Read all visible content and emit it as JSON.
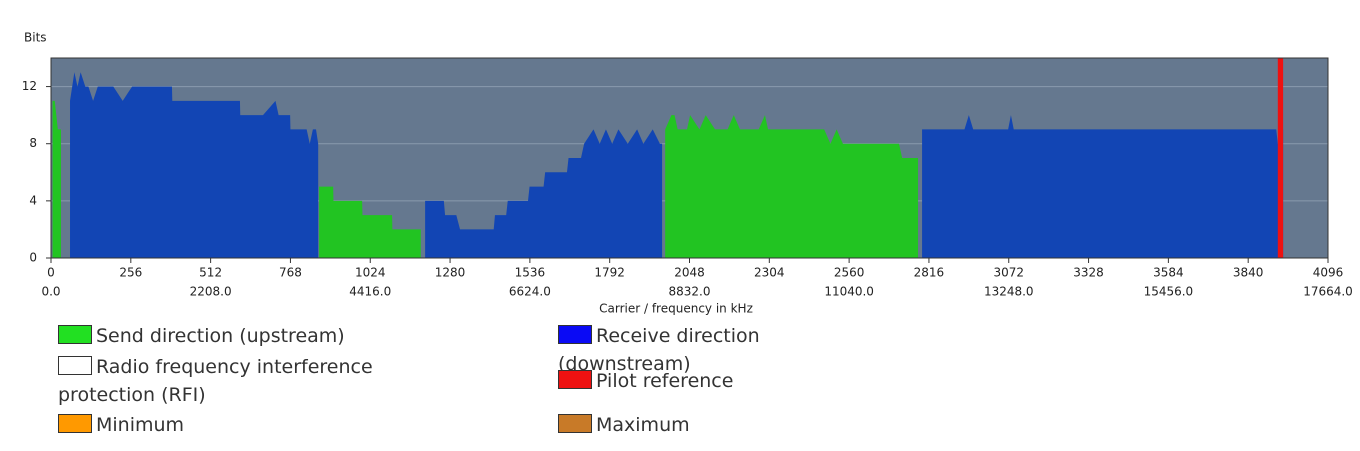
{
  "chart_data": {
    "type": "area",
    "y_label": "Bits",
    "x_label": "Carrier / frequency in kHz",
    "xlim": [
      0,
      4096
    ],
    "xticks": [
      0,
      256,
      512,
      768,
      1024,
      1280,
      1536,
      1792,
      2048,
      2304,
      2560,
      2816,
      3072,
      3328,
      3584,
      3840,
      4096
    ],
    "x2lim": [
      0,
      17664
    ],
    "x2ticks": [
      {
        "value": 0,
        "label": "0.0"
      },
      {
        "value": 2208,
        "label": "2208.0"
      },
      {
        "value": 4416,
        "label": "4416.0"
      },
      {
        "value": 6624,
        "label": "6624.0"
      },
      {
        "value": 8832,
        "label": "8832.0"
      },
      {
        "value": 11040,
        "label": "11040.0"
      },
      {
        "value": 13248,
        "label": "13248.0"
      },
      {
        "value": 15456,
        "label": "15456.0"
      },
      {
        "value": 17664,
        "label": "17664.0"
      }
    ],
    "ylim": [
      0,
      14
    ],
    "yticks": [
      0,
      4,
      8,
      12
    ],
    "grid": true,
    "series": [
      {
        "color": "#22c422",
        "x": [
          5,
          12,
          22,
          32,
          40,
          860,
          905,
          906,
          998,
          999,
          1094,
          1095,
          1186,
          1200,
          1970,
          1990,
          2000,
          2010,
          2040,
          2050,
          2080,
          2100,
          2130,
          2150,
          2170,
          2190,
          2210,
          2230,
          2250,
          2270,
          2290,
          2300,
          2320,
          2340,
          2360,
          2400,
          2440,
          2480,
          2500,
          2520,
          2540,
          2560,
          2600,
          2640,
          2660,
          2680,
          2720,
          2730,
          2760,
          2781
        ],
        "values": [
          11,
          11,
          9,
          9,
          null,
          5,
          5,
          4,
          4,
          3,
          3,
          2,
          2,
          null,
          9,
          10,
          10,
          9,
          9,
          10,
          9,
          10,
          9,
          9,
          9,
          10,
          9,
          9,
          9,
          9,
          10,
          9,
          9,
          9,
          9,
          9,
          9,
          9,
          8,
          9,
          8,
          8,
          8,
          8,
          8,
          8,
          8,
          7,
          7,
          7
        ]
      },
      {
        "color": "#1245b4",
        "x": [
          61,
          75,
          85,
          95,
          110,
          120,
          135,
          150,
          170,
          200,
          230,
          260,
          300,
          340,
          388,
          389,
          560,
          600,
          606,
          607,
          680,
          720,
          730,
          750,
          767,
          768,
          820,
          830,
          840,
          850,
          857,
          1000,
          1200,
          1209,
          1260,
          1264,
          1300,
          1312,
          1420,
          1424,
          1460,
          1465,
          1530,
          1535,
          1580,
          1585,
          1655,
          1660,
          1700,
          1710,
          1740,
          1760,
          1780,
          1800,
          1820,
          1850,
          1880,
          1900,
          1930,
          1953,
          1960,
          2000,
          2794,
          2930,
          2944,
          2958,
          3070,
          3079,
          3088,
          3930,
          3935,
          3952
        ],
        "values": [
          11,
          13,
          12,
          13,
          12,
          12,
          11,
          12,
          12,
          12,
          11,
          12,
          12,
          12,
          12,
          11,
          11,
          11,
          11,
          10,
          10,
          11,
          10,
          10,
          10,
          9,
          9,
          8,
          9,
          9,
          8,
          null,
          4,
          4,
          4,
          3,
          3,
          2,
          2,
          3,
          3,
          4,
          4,
          5,
          5,
          6,
          6,
          7,
          7,
          8,
          9,
          8,
          9,
          8,
          9,
          8,
          9,
          8,
          9,
          8,
          8,
          null,
          9,
          9,
          10,
          9,
          9,
          10,
          9,
          9,
          8,
          9
        ]
      },
      {
        "color": "#ee1111",
        "x": [
          3935,
          3952
        ],
        "values": [
          14,
          14
        ]
      }
    ],
    "legend": [
      {
        "label": "Send direction (upstream)",
        "color": "#22e022"
      },
      {
        "label": "Receive direction (downstream)",
        "color": "#0a0af5"
      },
      {
        "label": "Radio frequency interference protection (RFI)",
        "color": "#ffffff"
      },
      {
        "label": "Pilot reference",
        "color": "#ee1111"
      },
      {
        "label": "Minimum",
        "color": "#ff9900"
      },
      {
        "label": "Maximum",
        "color": "#c87a28"
      }
    ]
  }
}
